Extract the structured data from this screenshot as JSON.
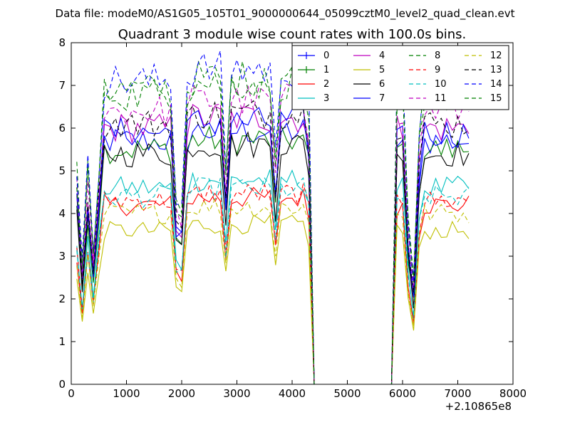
{
  "suptitle": "Data file: modeM0/AS1G05_105T01_9000000644_05099cztM0_level2_quad_clean.evt",
  "chart_data": {
    "type": "line",
    "title": "Quadrant 3 module wise count rates with 100.0s bins.",
    "xlabel": "",
    "ylabel": "",
    "x_offset_label": "+2.10865e8",
    "xlim": [
      0,
      8000
    ],
    "ylim": [
      0,
      8
    ],
    "x_ticks": [
      0,
      1000,
      2000,
      3000,
      4000,
      5000,
      6000,
      7000,
      8000
    ],
    "y_ticks": [
      0,
      1,
      2,
      3,
      4,
      5,
      6,
      7,
      8
    ],
    "grid": false,
    "legend_position": "top-right",
    "legend_columns": 4,
    "x": [
      100,
      200,
      300,
      400,
      500,
      600,
      700,
      800,
      900,
      1000,
      1100,
      1200,
      1300,
      1400,
      1500,
      1600,
      1700,
      1800,
      1900,
      2000,
      2100,
      2200,
      2300,
      2400,
      2500,
      2600,
      2700,
      2800,
      2900,
      3000,
      3100,
      3200,
      3300,
      3400,
      3500,
      3600,
      3700,
      3800,
      3900,
      4000,
      4100,
      4200,
      4300,
      4400,
      4500,
      4600,
      4700,
      4800,
      4900,
      5000,
      5100,
      5200,
      5300,
      5400,
      5500,
      5600,
      5700,
      5800,
      5900,
      6000,
      6100,
      6200,
      6300,
      6400,
      6500,
      6600,
      6700,
      6800,
      6900,
      7000,
      7100,
      7200
    ],
    "series": [
      {
        "name": "0",
        "color": "#0000ff",
        "dash": "solid",
        "marker": "plus"
      },
      {
        "name": "1",
        "color": "#008000",
        "dash": "solid",
        "marker": "plus"
      },
      {
        "name": "2",
        "color": "#ff0000",
        "dash": "solid"
      },
      {
        "name": "3",
        "color": "#00bfbf",
        "dash": "solid"
      },
      {
        "name": "4",
        "color": "#bf00bf",
        "dash": "solid"
      },
      {
        "name": "5",
        "color": "#bfbf00",
        "dash": "solid"
      },
      {
        "name": "6",
        "color": "#000000",
        "dash": "solid"
      },
      {
        "name": "7",
        "color": "#0000ff",
        "dash": "solid"
      },
      {
        "name": "8",
        "color": "#008000",
        "dash": "dashed"
      },
      {
        "name": "9",
        "color": "#ff0000",
        "dash": "dashed"
      },
      {
        "name": "10",
        "color": "#00bfbf",
        "dash": "dashed"
      },
      {
        "name": "11",
        "color": "#bf00bf",
        "dash": "dashed"
      },
      {
        "name": "12",
        "color": "#bfbf00",
        "dash": "dashed"
      },
      {
        "name": "13",
        "color": "#000000",
        "dash": "dashed"
      },
      {
        "name": "14",
        "color": "#0000ff",
        "dash": "dashed"
      },
      {
        "name": "15",
        "color": "#008000",
        "dash": "dashed"
      }
    ]
  }
}
